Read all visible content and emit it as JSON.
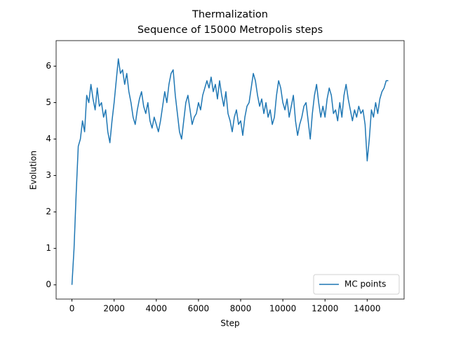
{
  "chart_data": {
    "type": "line",
    "title": "Thermalization",
    "subtitle": "Sequence of 15000 Metropolis steps",
    "x_label": "Step",
    "y_label": "Evolution",
    "x": [
      0,
      100,
      200,
      300,
      400,
      500,
      600,
      700,
      800,
      900,
      1000,
      1100,
      1200,
      1300,
      1400,
      1500,
      1600,
      1700,
      1800,
      1900,
      2000,
      2100,
      2200,
      2300,
      2400,
      2500,
      2600,
      2700,
      2800,
      2900,
      3000,
      3100,
      3200,
      3300,
      3400,
      3500,
      3600,
      3700,
      3800,
      3900,
      4000,
      4100,
      4200,
      4300,
      4400,
      4500,
      4600,
      4700,
      4800,
      4900,
      5000,
      5100,
      5200,
      5300,
      5400,
      5500,
      5600,
      5700,
      5800,
      5900,
      6000,
      6100,
      6200,
      6300,
      6400,
      6500,
      6600,
      6700,
      6800,
      6900,
      7000,
      7100,
      7200,
      7300,
      7400,
      7500,
      7600,
      7700,
      7800,
      7900,
      8000,
      8100,
      8200,
      8300,
      8400,
      8500,
      8600,
      8700,
      8800,
      8900,
      9000,
      9100,
      9200,
      9300,
      9400,
      9500,
      9600,
      9700,
      9800,
      9900,
      10000,
      10100,
      10200,
      10300,
      10400,
      10500,
      10600,
      10700,
      10800,
      10900,
      11000,
      11100,
      11200,
      11300,
      11400,
      11500,
      11600,
      11700,
      11800,
      11900,
      12000,
      12100,
      12200,
      12300,
      12400,
      12500,
      12600,
      12700,
      12800,
      12900,
      13000,
      13100,
      13200,
      13300,
      13400,
      13500,
      13600,
      13700,
      13800,
      13900,
      14000,
      14100,
      14200,
      14300,
      14400,
      14500,
      14600,
      14700,
      14800,
      14900,
      15000
    ],
    "series": [
      {
        "name": "MC points",
        "color": "#1f77b4",
        "values": [
          0,
          1.0,
          2.5,
          3.8,
          4.0,
          4.5,
          4.2,
          5.2,
          5.0,
          5.5,
          5.1,
          4.8,
          5.4,
          4.9,
          5.0,
          4.6,
          4.8,
          4.2,
          3.9,
          4.5,
          5.0,
          5.6,
          6.2,
          5.8,
          5.9,
          5.5,
          5.8,
          5.3,
          5.0,
          4.6,
          4.4,
          4.8,
          5.1,
          5.3,
          4.9,
          4.7,
          5.0,
          4.5,
          4.3,
          4.6,
          4.4,
          4.2,
          4.5,
          4.9,
          5.3,
          5.0,
          5.5,
          5.8,
          5.9,
          5.2,
          4.7,
          4.2,
          4.0,
          4.5,
          5.0,
          5.2,
          4.8,
          4.4,
          4.6,
          4.7,
          5.0,
          4.8,
          5.2,
          5.4,
          5.6,
          5.4,
          5.7,
          5.3,
          5.5,
          5.1,
          5.6,
          5.2,
          4.9,
          5.3,
          4.7,
          4.5,
          4.2,
          4.6,
          4.8,
          4.4,
          4.5,
          4.1,
          4.6,
          4.9,
          5.0,
          5.4,
          5.8,
          5.6,
          5.2,
          4.9,
          5.1,
          4.7,
          5.0,
          4.6,
          4.8,
          4.4,
          4.6,
          5.2,
          5.6,
          5.4,
          5.0,
          4.8,
          5.1,
          4.6,
          4.9,
          5.2,
          4.5,
          4.1,
          4.4,
          4.6,
          4.9,
          5.0,
          4.5,
          4.0,
          4.7,
          5.2,
          5.5,
          5.0,
          4.6,
          4.9,
          4.6,
          5.1,
          5.4,
          5.2,
          4.7,
          4.8,
          4.5,
          5.0,
          4.6,
          5.2,
          5.5,
          5.1,
          4.8,
          4.5,
          4.8,
          4.6,
          4.9,
          4.7,
          4.8,
          4.4,
          3.4,
          4.0,
          4.8,
          4.6,
          5.0,
          4.7,
          5.1,
          5.3,
          5.4,
          5.6,
          5.6
        ]
      }
    ],
    "xlim": [
      -750,
      15750
    ],
    "ylim": [
      -0.39,
      6.7
    ],
    "xticks": [
      0,
      2000,
      4000,
      6000,
      8000,
      10000,
      12000,
      14000
    ],
    "yticks": [
      0,
      1,
      2,
      3,
      4,
      5,
      6
    ],
    "legend": "lower right"
  }
}
